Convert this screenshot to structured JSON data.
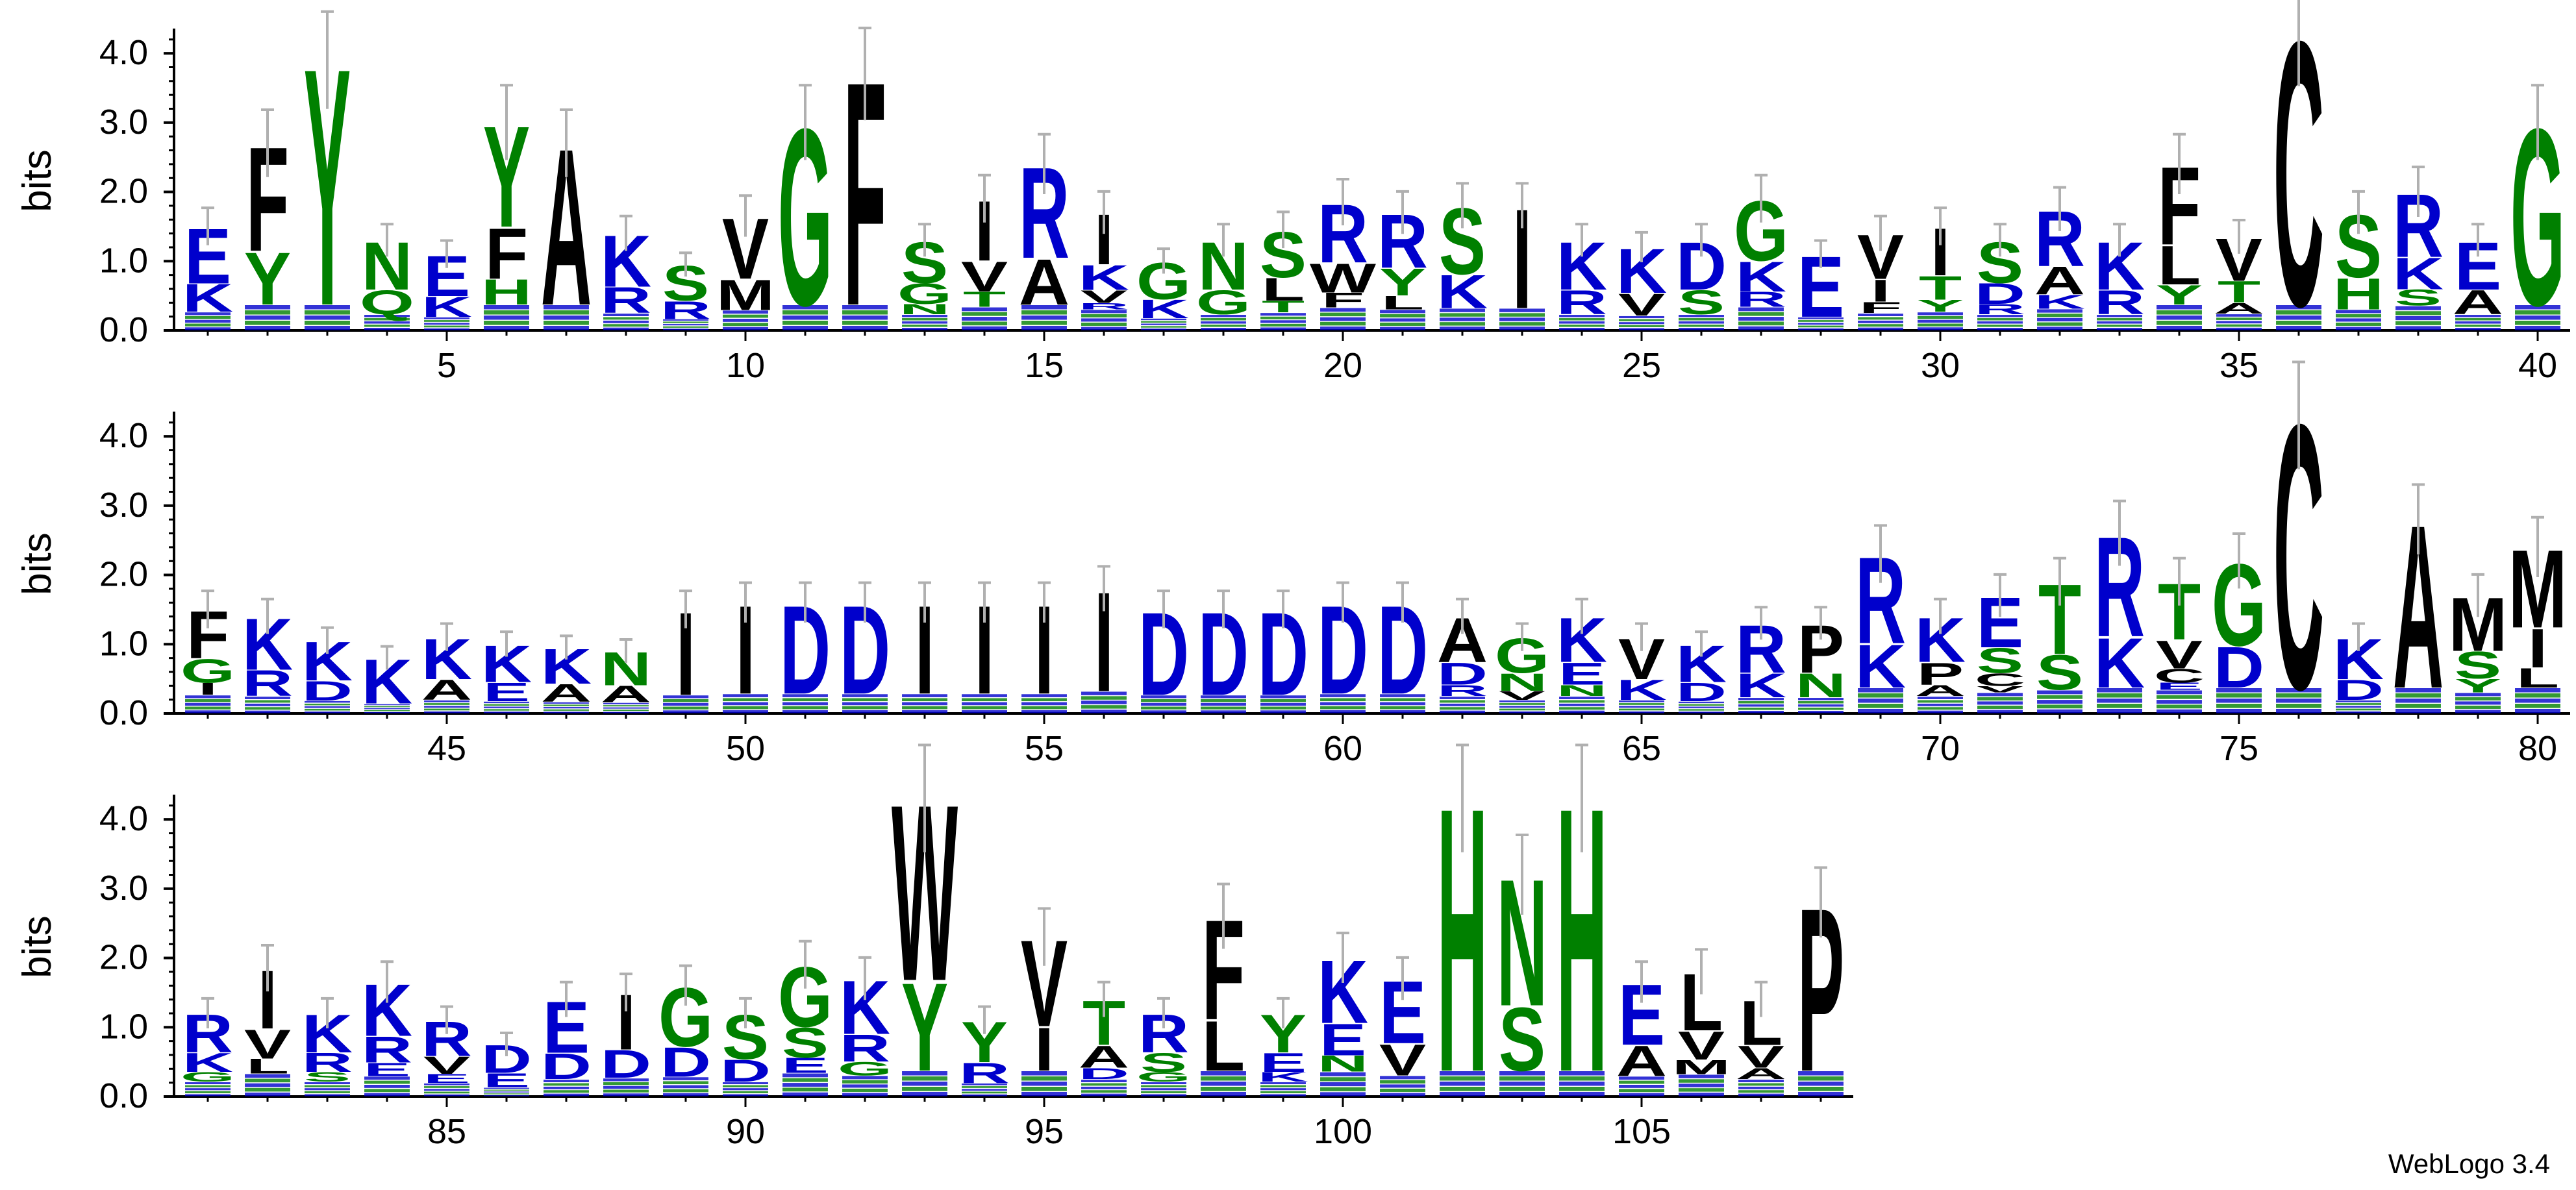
{
  "chart_data": {
    "type": "sequence-logo",
    "ylabel": "bits",
    "ylim": [
      0,
      4.32
    ],
    "yticks": [
      0.0,
      1.0,
      2.0,
      3.0,
      4.0
    ],
    "ytick_labels": [
      "0.0",
      "1.0",
      "2.0",
      "3.0",
      "4.0"
    ],
    "colors": {
      "hydrophobic": "#000000",
      "polar": "#008000",
      "basic": "#0000cc",
      "acidic": "#0000cc",
      "errorbar": "#b0b0b0"
    },
    "rows": [
      {
        "start": 1,
        "end": 40,
        "xticks": [
          5,
          10,
          15,
          20,
          25,
          30,
          35,
          40
        ],
        "xtick_labels": [
          "5",
          "10",
          "15",
          "20",
          "25",
          "30",
          "35",
          "40"
        ],
        "dominant": [
          {
            "pos": 1,
            "letters": [
              "E",
              "K"
            ],
            "height": 1.5
          },
          {
            "pos": 2,
            "letters": [
              "F",
              "Y"
            ],
            "height": 2.7
          },
          {
            "pos": 3,
            "letters": [
              "Y"
            ],
            "height": 3.9
          },
          {
            "pos": 4,
            "letters": [
              "N",
              "Q"
            ],
            "height": 1.3
          },
          {
            "pos": 5,
            "letters": [
              "E",
              "K"
            ],
            "height": 1.1
          },
          {
            "pos": 6,
            "letters": [
              "Y",
              "F",
              "H"
            ],
            "height": 3.0
          },
          {
            "pos": 7,
            "letters": [
              "A"
            ],
            "height": 2.7
          },
          {
            "pos": 8,
            "letters": [
              "K",
              "R"
            ],
            "height": 1.4
          },
          {
            "pos": 9,
            "letters": [
              "S",
              "R"
            ],
            "height": 0.95
          },
          {
            "pos": 10,
            "letters": [
              "V",
              "M"
            ],
            "height": 1.65
          },
          {
            "pos": 11,
            "letters": [
              "G"
            ],
            "height": 3.0
          },
          {
            "pos": 12,
            "letters": [
              "F"
            ],
            "height": 3.7
          },
          {
            "pos": 13,
            "letters": [
              "S",
              "G",
              "N"
            ],
            "height": 1.3
          },
          {
            "pos": 14,
            "letters": [
              "I",
              "V",
              "T"
            ],
            "height": 1.9
          },
          {
            "pos": 15,
            "letters": [
              "R",
              "A"
            ],
            "height": 2.4
          },
          {
            "pos": 16,
            "letters": [
              "I",
              "K",
              "V",
              "R"
            ],
            "height": 1.7
          },
          {
            "pos": 17,
            "letters": [
              "G",
              "K"
            ],
            "height": 1.0
          },
          {
            "pos": 18,
            "letters": [
              "N",
              "G"
            ],
            "height": 1.3
          },
          {
            "pos": 19,
            "letters": [
              "S",
              "L",
              "T"
            ],
            "height": 1.45
          },
          {
            "pos": 20,
            "letters": [
              "R",
              "W",
              "F"
            ],
            "height": 1.85
          },
          {
            "pos": 21,
            "letters": [
              "R",
              "Y",
              "L"
            ],
            "height": 1.7
          },
          {
            "pos": 22,
            "letters": [
              "S",
              "K"
            ],
            "height": 1.8
          },
          {
            "pos": 23,
            "letters": [
              "I"
            ],
            "height": 1.8
          },
          {
            "pos": 24,
            "letters": [
              "K",
              "R"
            ],
            "height": 1.3
          },
          {
            "pos": 25,
            "letters": [
              "K",
              "V"
            ],
            "height": 1.2
          },
          {
            "pos": 26,
            "letters": [
              "D",
              "S"
            ],
            "height": 1.3
          },
          {
            "pos": 27,
            "letters": [
              "G",
              "K",
              "R"
            ],
            "height": 1.9
          },
          {
            "pos": 28,
            "letters": [
              "E"
            ],
            "height": 1.1
          },
          {
            "pos": 29,
            "letters": [
              "V",
              "I",
              "F"
            ],
            "height": 1.4
          },
          {
            "pos": 30,
            "letters": [
              "I",
              "T",
              "Y"
            ],
            "height": 1.5
          },
          {
            "pos": 31,
            "letters": [
              "S",
              "D",
              "R"
            ],
            "height": 1.3
          },
          {
            "pos": 32,
            "letters": [
              "R",
              "A",
              "K"
            ],
            "height": 1.75
          },
          {
            "pos": 33,
            "letters": [
              "K",
              "R"
            ],
            "height": 1.3
          },
          {
            "pos": 34,
            "letters": [
              "F",
              "L",
              "Y"
            ],
            "height": 2.4
          },
          {
            "pos": 35,
            "letters": [
              "V",
              "T",
              "A"
            ],
            "height": 1.35
          },
          {
            "pos": 36,
            "letters": [
              "C"
            ],
            "height": 4.3
          },
          {
            "pos": 37,
            "letters": [
              "S",
              "H"
            ],
            "height": 1.7
          },
          {
            "pos": 38,
            "letters": [
              "R",
              "K",
              "S"
            ],
            "height": 2.0
          },
          {
            "pos": 39,
            "letters": [
              "E",
              "A"
            ],
            "height": 1.3
          },
          {
            "pos": 40,
            "letters": [
              "G"
            ],
            "height": 3.0
          }
        ]
      },
      {
        "start": 41,
        "end": 80,
        "xticks": [
          45,
          50,
          55,
          60,
          65,
          70,
          75,
          80
        ],
        "xtick_labels": [
          "45",
          "50",
          "55",
          "60",
          "65",
          "70",
          "75",
          "80"
        ],
        "dominant": [
          {
            "pos": 41,
            "letters": [
              "F",
              "G",
              "I"
            ],
            "height": 1.5
          },
          {
            "pos": 42,
            "letters": [
              "K",
              "R"
            ],
            "height": 1.4
          },
          {
            "pos": 43,
            "letters": [
              "K",
              "D"
            ],
            "height": 1.05
          },
          {
            "pos": 44,
            "letters": [
              "K"
            ],
            "height": 0.8
          },
          {
            "pos": 45,
            "letters": [
              "K",
              "A"
            ],
            "height": 1.1
          },
          {
            "pos": 46,
            "letters": [
              "K",
              "E"
            ],
            "height": 1.0
          },
          {
            "pos": 47,
            "letters": [
              "K",
              "A"
            ],
            "height": 0.95
          },
          {
            "pos": 48,
            "letters": [
              "N",
              "A"
            ],
            "height": 0.9
          },
          {
            "pos": 49,
            "letters": [
              "I"
            ],
            "height": 1.5
          },
          {
            "pos": 50,
            "letters": [
              "I"
            ],
            "height": 1.6
          },
          {
            "pos": 51,
            "letters": [
              "D"
            ],
            "height": 1.6
          },
          {
            "pos": 52,
            "letters": [
              "D"
            ],
            "height": 1.6
          },
          {
            "pos": 53,
            "letters": [
              "I"
            ],
            "height": 1.6
          },
          {
            "pos": 54,
            "letters": [
              "I"
            ],
            "height": 1.6
          },
          {
            "pos": 55,
            "letters": [
              "I"
            ],
            "height": 1.6
          },
          {
            "pos": 56,
            "letters": [
              "I"
            ],
            "height": 1.8
          },
          {
            "pos": 57,
            "letters": [
              "D"
            ],
            "height": 1.5
          },
          {
            "pos": 58,
            "letters": [
              "D"
            ],
            "height": 1.5
          },
          {
            "pos": 59,
            "letters": [
              "D"
            ],
            "height": 1.5
          },
          {
            "pos": 60,
            "letters": [
              "D"
            ],
            "height": 1.6
          },
          {
            "pos": 61,
            "letters": [
              "D"
            ],
            "height": 1.6
          },
          {
            "pos": 62,
            "letters": [
              "A",
              "D",
              "R"
            ],
            "height": 1.4
          },
          {
            "pos": 63,
            "letters": [
              "G",
              "N",
              "V"
            ],
            "height": 1.1
          },
          {
            "pos": 64,
            "letters": [
              "K",
              "E",
              "N"
            ],
            "height": 1.4
          },
          {
            "pos": 65,
            "letters": [
              "V",
              "K"
            ],
            "height": 1.1
          },
          {
            "pos": 66,
            "letters": [
              "K",
              "D"
            ],
            "height": 1.0
          },
          {
            "pos": 67,
            "letters": [
              "R",
              "K"
            ],
            "height": 1.3
          },
          {
            "pos": 68,
            "letters": [
              "P",
              "N"
            ],
            "height": 1.3
          },
          {
            "pos": 69,
            "letters": [
              "R",
              "K"
            ],
            "height": 2.3
          },
          {
            "pos": 70,
            "letters": [
              "K",
              "P",
              "A"
            ],
            "height": 1.4
          },
          {
            "pos": 71,
            "letters": [
              "E",
              "S",
              "C",
              "V"
            ],
            "height": 1.7
          },
          {
            "pos": 72,
            "letters": [
              "T",
              "S"
            ],
            "height": 1.9
          },
          {
            "pos": 73,
            "letters": [
              "R",
              "K"
            ],
            "height": 2.6
          },
          {
            "pos": 74,
            "letters": [
              "T",
              "V",
              "C",
              "E"
            ],
            "height": 1.9
          },
          {
            "pos": 75,
            "letters": [
              "G",
              "D"
            ],
            "height": 2.2
          },
          {
            "pos": 76,
            "letters": [
              "C"
            ],
            "height": 4.3
          },
          {
            "pos": 77,
            "letters": [
              "K",
              "D"
            ],
            "height": 1.1
          },
          {
            "pos": 78,
            "letters": [
              "A"
            ],
            "height": 2.8
          },
          {
            "pos": 79,
            "letters": [
              "M",
              "S",
              "Y"
            ],
            "height": 1.7
          },
          {
            "pos": 80,
            "letters": [
              "M",
              "I",
              "L"
            ],
            "height": 2.4
          }
        ]
      },
      {
        "start": 81,
        "end": 108,
        "xticks": [
          85,
          90,
          95,
          100,
          105
        ],
        "xtick_labels": [
          "85",
          "90",
          "95",
          "100",
          "105"
        ],
        "dominant": [
          {
            "pos": 81,
            "letters": [
              "R",
              "K",
              "G"
            ],
            "height": 1.2
          },
          {
            "pos": 82,
            "letters": [
              "I",
              "V",
              "L"
            ],
            "height": 1.85
          },
          {
            "pos": 83,
            "letters": [
              "K",
              "R",
              "S"
            ],
            "height": 1.2
          },
          {
            "pos": 84,
            "letters": [
              "K",
              "R",
              "E"
            ],
            "height": 1.65
          },
          {
            "pos": 85,
            "letters": [
              "R",
              "V",
              "E"
            ],
            "height": 1.1
          },
          {
            "pos": 86,
            "letters": [
              "D",
              "E"
            ],
            "height": 0.75
          },
          {
            "pos": 87,
            "letters": [
              "E",
              "D"
            ],
            "height": 1.4
          },
          {
            "pos": 88,
            "letters": [
              "I",
              "D"
            ],
            "height": 1.5
          },
          {
            "pos": 89,
            "letters": [
              "G",
              "D"
            ],
            "height": 1.6
          },
          {
            "pos": 90,
            "letters": [
              "S",
              "D"
            ],
            "height": 1.2
          },
          {
            "pos": 91,
            "letters": [
              "G",
              "S",
              "E"
            ],
            "height": 1.9
          },
          {
            "pos": 92,
            "letters": [
              "K",
              "R",
              "G"
            ],
            "height": 1.7
          },
          {
            "pos": 93,
            "letters": [
              "W",
              "Y"
            ],
            "height": 4.3
          },
          {
            "pos": 94,
            "letters": [
              "Y",
              "R"
            ],
            "height": 1.1
          },
          {
            "pos": 95,
            "letters": [
              "V",
              "I"
            ],
            "height": 2.3
          },
          {
            "pos": 96,
            "letters": [
              "T",
              "A",
              "D"
            ],
            "height": 1.4
          },
          {
            "pos": 97,
            "letters": [
              "R",
              "S",
              "G"
            ],
            "height": 1.2
          },
          {
            "pos": 98,
            "letters": [
              "F",
              "L"
            ],
            "height": 2.6
          },
          {
            "pos": 99,
            "letters": [
              "Y",
              "E",
              "K"
            ],
            "height": 1.2
          },
          {
            "pos": 100,
            "letters": [
              "K",
              "E",
              "N"
            ],
            "height": 2.0
          },
          {
            "pos": 101,
            "letters": [
              "E",
              "V"
            ],
            "height": 1.7
          },
          {
            "pos": 102,
            "letters": [
              "H"
            ],
            "height": 4.3
          },
          {
            "pos": 103,
            "letters": [
              "N",
              "S"
            ],
            "height": 3.2
          },
          {
            "pos": 104,
            "letters": [
              "H"
            ],
            "height": 4.3
          },
          {
            "pos": 105,
            "letters": [
              "E",
              "A"
            ],
            "height": 1.65
          },
          {
            "pos": 106,
            "letters": [
              "L",
              "V",
              "M"
            ],
            "height": 1.8
          },
          {
            "pos": 107,
            "letters": [
              "L",
              "V",
              "A"
            ],
            "height": 1.4
          },
          {
            "pos": 108,
            "letters": [
              "P"
            ],
            "height": 2.8
          }
        ]
      }
    ]
  },
  "footer": "WebLogo 3.4"
}
